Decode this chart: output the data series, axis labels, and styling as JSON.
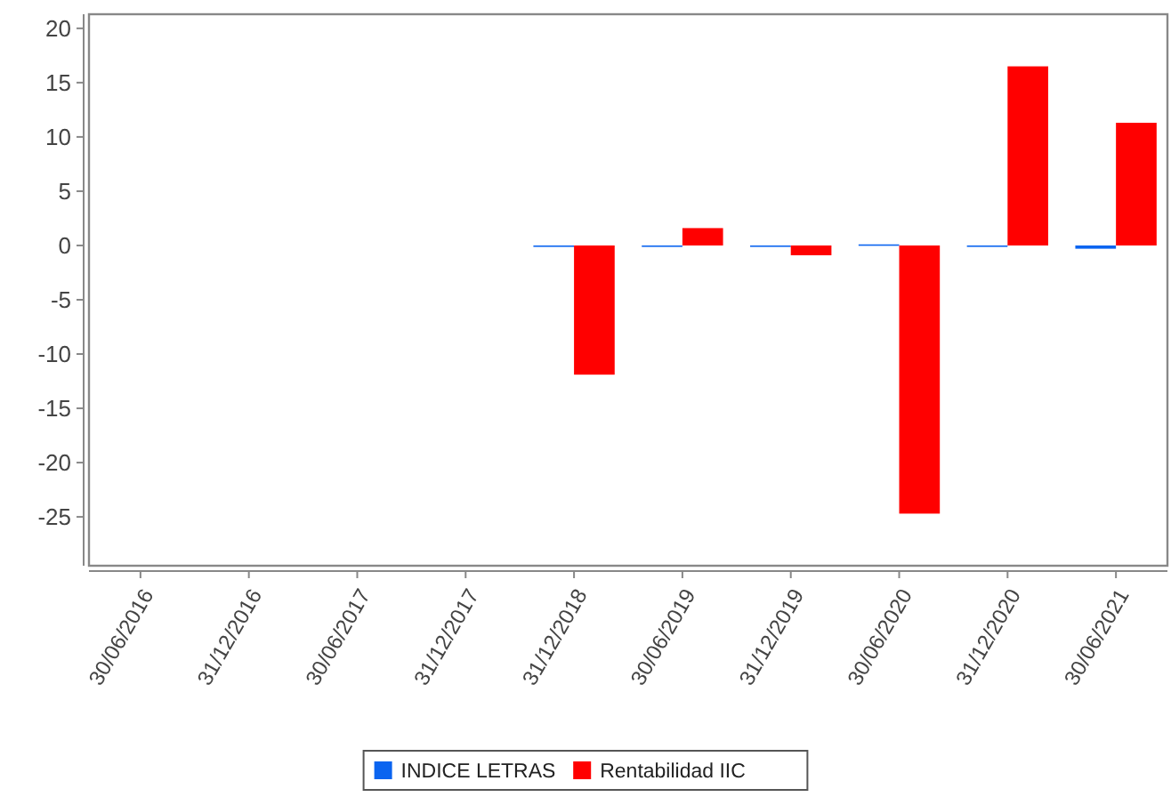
{
  "chart_data": {
    "type": "bar",
    "categories": [
      "30/06/2016",
      "31/12/2016",
      "30/06/2017",
      "31/12/2017",
      "31/12/2018",
      "30/06/2019",
      "31/12/2019",
      "30/06/2020",
      "31/12/2020",
      "30/06/2021"
    ],
    "series": [
      {
        "name": "INDICE LETRAS",
        "color": "#0a64f0",
        "values": [
          null,
          null,
          null,
          null,
          0.0,
          0.0,
          0.0,
          0.1,
          0.0,
          -0.3
        ]
      },
      {
        "name": "Rentabilidad IIC",
        "color": "#ff0000",
        "values": [
          null,
          null,
          null,
          null,
          -11.9,
          1.6,
          -0.9,
          -24.7,
          16.5,
          11.3
        ]
      }
    ],
    "ylim": [
      -29.5,
      21.3
    ],
    "yticks": [
      -25,
      -20,
      -15,
      -10,
      -5,
      0,
      5,
      10,
      15,
      20
    ],
    "grid": false,
    "legend": "bottom"
  }
}
